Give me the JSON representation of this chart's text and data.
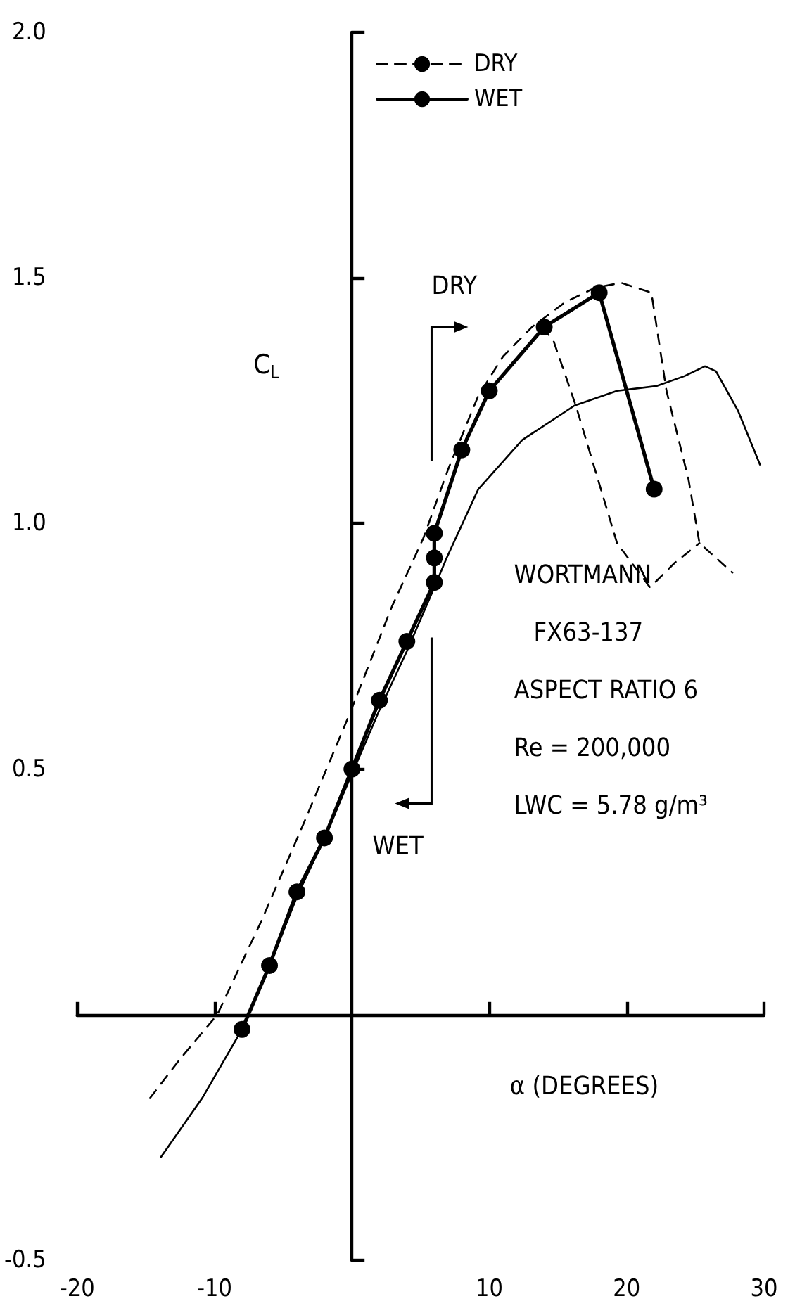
{
  "chart_data": {
    "type": "line",
    "xlabel": "α (DEGREES)",
    "ylabel": "C$_{L}$",
    "xlim": [
      -20,
      30
    ],
    "xticks": [
      -20,
      -10,
      10,
      20,
      30
    ],
    "ylim": [
      -0.5,
      2
    ],
    "yticks": [
      {
        "value": -0.5,
        "label": "-0.5"
      },
      {
        "value": 0.5,
        "label": "0.5"
      },
      {
        "value": 1,
        "label": "1.0"
      },
      {
        "value": 1.5,
        "label": "1.5"
      },
      {
        "value": 2,
        "label": "2.0"
      }
    ],
    "grid": false,
    "legend": "top",
    "series": [
      {
        "name": "DRY",
        "color": "#000000",
        "line_style": "dashed",
        "marker": "none",
        "x": [
          -14.7,
          -12.5,
          -9.8,
          -6.6,
          -3.5,
          -0.2,
          2.9,
          5.2,
          7,
          9.2,
          11,
          13.1,
          15.5,
          17.7,
          19.6,
          21.8,
          22.9,
          24.5,
          25.3,
          26.5,
          27.7,
          20,
          13.9,
          14.7,
          16.3,
          19.3,
          21.7,
          23.5,
          25.3
        ],
        "values": [
          -0.17,
          -0.09,
          0,
          0.19,
          0.39,
          0.61,
          0.83,
          0.97,
          1.11,
          1.26,
          1.34,
          1.4,
          1.45,
          1.48,
          1.49,
          1.47,
          1.27,
          1.09,
          0.96,
          0.93,
          0.9,
          null,
          1.4,
          1.37,
          1.24,
          0.96,
          0.87,
          0.92,
          0.96
        ]
      },
      {
        "name": "WET",
        "color": "#000000",
        "line_style": "solid",
        "marker": "none",
        "x": [
          -13.9,
          -10.9,
          -8,
          -6,
          -4,
          -2,
          0,
          2,
          4,
          6,
          6.9,
          9.2,
          12.4,
          16.2,
          19.3,
          22.2,
          24.2,
          25.7,
          26.5,
          28.1,
          29.7
        ],
        "values": [
          -0.29,
          -0.17,
          -0.03,
          0.1,
          0.24,
          0.36,
          0.49,
          0.62,
          0.74,
          0.87,
          0.93,
          1.07,
          1.17,
          1.24,
          1.27,
          1.28,
          1.3,
          1.32,
          1.31,
          1.23,
          1.12
        ]
      },
      {
        "color": "#000000",
        "line_style": "solid",
        "marker": "circle",
        "x": [
          -8,
          -6,
          -4,
          -2,
          0,
          2,
          4,
          6,
          6,
          6,
          8,
          10,
          14,
          18,
          22
        ],
        "values": [
          -0.03,
          0.1,
          0.25,
          0.36,
          0.5,
          0.64,
          0.76,
          0.88,
          0.93,
          0.98,
          1.15,
          1.27,
          1.4,
          1.47,
          1.07
        ]
      }
    ],
    "annotations": [
      "DRY",
      "WET",
      "WORTMANN",
      "FX63-137",
      "ASPECT RATIO 6",
      "Re = 200,000",
      "LWC = 5.78 g/m³"
    ]
  }
}
